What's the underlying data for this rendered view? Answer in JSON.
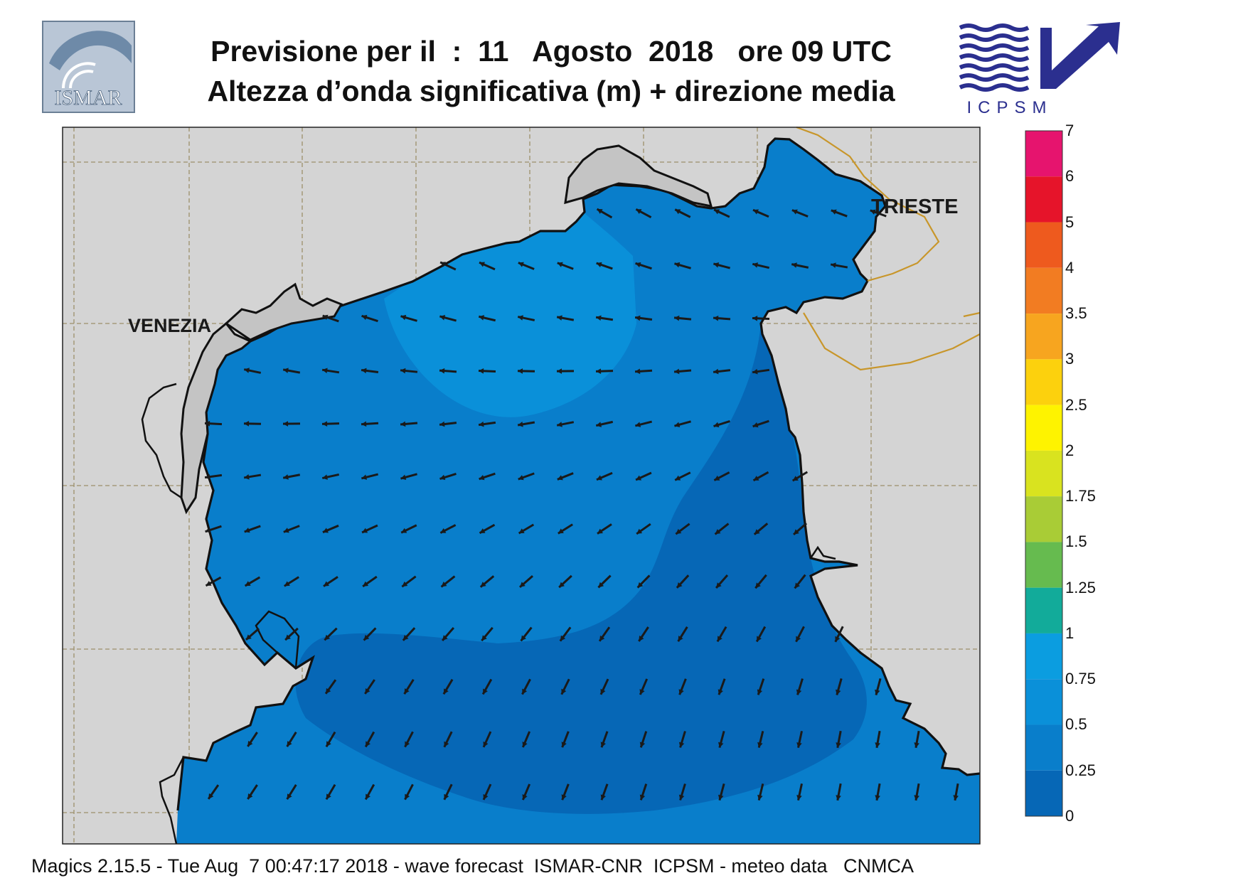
{
  "title": {
    "line1": "Previsione per il  :  11   Agosto  2018   ore 09 UTC",
    "line2": "Altezza d’onda significativa (m) + direzione media"
  },
  "logos": {
    "left": "ISMAR",
    "right": "ICPSM"
  },
  "places": {
    "venezia": "VENEZIA",
    "trieste": "TRIESTE"
  },
  "legend": {
    "unit": "m",
    "levels": [
      {
        "label": "7",
        "color": "#e6146e"
      },
      {
        "label": "6",
        "color": "#e6142a"
      },
      {
        "label": "5",
        "color": "#ee5a1e"
      },
      {
        "label": "4",
        "color": "#f27c22"
      },
      {
        "label": "3.5",
        "color": "#f7a51f"
      },
      {
        "label": "3",
        "color": "#fcd10d"
      },
      {
        "label": "2.5",
        "color": "#fef300"
      },
      {
        "label": "2",
        "color": "#d9e31f"
      },
      {
        "label": "1.75",
        "color": "#a9cc36"
      },
      {
        "label": "1.5",
        "color": "#66bb4f"
      },
      {
        "label": "1.25",
        "color": "#12ab9a"
      },
      {
        "label": "1",
        "color": "#0b9de0"
      },
      {
        "label": "0.75",
        "color": "#0a90d9"
      },
      {
        "label": "0.5",
        "color": "#097ecb"
      },
      {
        "label": "0.25",
        "color": "#0667b6"
      },
      {
        "label": "0",
        "color": ""
      }
    ]
  },
  "colors": {
    "land": "#d4d4d4",
    "sea_0_025": "#0667b6",
    "sea_025_05": "#097ecb",
    "sea_05_075": "#0a90d9",
    "border": "#c8962a"
  },
  "footer": "Magics 2.15.5 - Tue Aug  7 00:47:17 2018 - wave forecast  ISMAR-CNR  ICPSM - meteo data   CNMCA"
}
